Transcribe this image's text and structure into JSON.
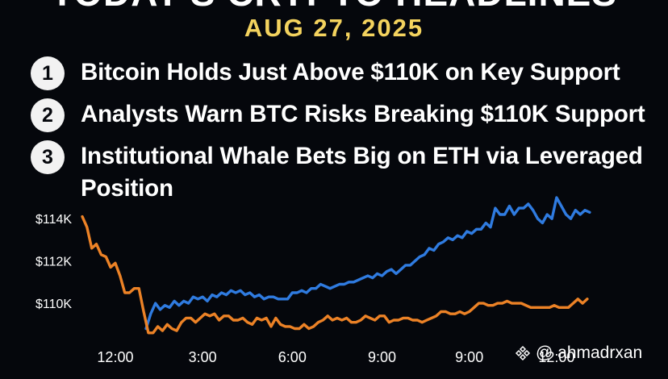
{
  "header": {
    "title": "TODAY'S CRYPTO HEADLINES",
    "date": "AUG 27, 2025"
  },
  "headlines": [
    {
      "number": "1",
      "text": "Bitcoin Holds Just Above $110K on Key Support"
    },
    {
      "number": "2",
      "text": "Analysts Warn BTC Risks Breaking $110K Support"
    },
    {
      "number": "3",
      "text": "Institutional Whale Bets Big on ETH via Leveraged Position"
    }
  ],
  "chart_data": {
    "type": "line",
    "grid": false,
    "legend": "none",
    "ylim": [
      108400,
      115000
    ],
    "y_ticks": [
      {
        "label": "$114K",
        "value": 114000
      },
      {
        "label": "$112K",
        "value": 112000
      },
      {
        "label": "$110K",
        "value": 110000
      }
    ],
    "xlim": [
      0,
      12
    ],
    "x_ticks": [
      {
        "label": "12:00",
        "value": 0.7
      },
      {
        "label": "3:00",
        "value": 2.55
      },
      {
        "label": "6:00",
        "value": 4.45
      },
      {
        "label": "9:00",
        "value": 6.35
      },
      {
        "label": "9:00",
        "value": 8.2
      },
      {
        "label": "12:00",
        "value": 10.05
      }
    ],
    "series": [
      {
        "color": "#2f7be0",
        "x": [
          1.35,
          1.45,
          1.55,
          1.65,
          1.75,
          1.85,
          1.95,
          2.05,
          2.15,
          2.25,
          2.35,
          2.45,
          2.55,
          2.65,
          2.75,
          2.85,
          2.95,
          3.05,
          3.15,
          3.25,
          3.35,
          3.45,
          3.55,
          3.65,
          3.75,
          3.85,
          3.95,
          4.05,
          4.15,
          4.25,
          4.35,
          4.45,
          4.55,
          4.65,
          4.75,
          4.85,
          4.95,
          5.05,
          5.15,
          5.25,
          5.35,
          5.45,
          5.55,
          5.65,
          5.75,
          5.85,
          5.95,
          6.05,
          6.15,
          6.25,
          6.35,
          6.45,
          6.55,
          6.65,
          6.75,
          6.85,
          6.95,
          7.05,
          7.15,
          7.25,
          7.35,
          7.45,
          7.55,
          7.65,
          7.75,
          7.85,
          7.95,
          8.05,
          8.15,
          8.25,
          8.35,
          8.45,
          8.55,
          8.65,
          8.75,
          8.85,
          8.95,
          9.05,
          9.15,
          9.25,
          9.35,
          9.45,
          9.55,
          9.65,
          9.75,
          9.85,
          9.95,
          10.05,
          10.15,
          10.25,
          10.35,
          10.45,
          10.55,
          10.65,
          10.75
        ],
        "values": [
          108800,
          109500,
          110000,
          109700,
          109900,
          109800,
          110100,
          109900,
          110100,
          110000,
          110300,
          110200,
          110300,
          110100,
          110400,
          110300,
          110500,
          110400,
          110600,
          110500,
          110600,
          110400,
          110500,
          110300,
          110400,
          110200,
          110300,
          110300,
          110200,
          110200,
          110200,
          110500,
          110500,
          110600,
          110500,
          110700,
          110700,
          110900,
          110800,
          110700,
          110800,
          110900,
          110900,
          111000,
          111000,
          111100,
          111200,
          111300,
          111200,
          111400,
          111300,
          111500,
          111600,
          111400,
          111600,
          111800,
          111800,
          112000,
          112200,
          112300,
          112600,
          112500,
          112800,
          112900,
          113100,
          113000,
          113200,
          113100,
          113400,
          113300,
          113500,
          113500,
          113800,
          113600,
          114500,
          114200,
          114200,
          114600,
          114200,
          114500,
          114500,
          114700,
          114400,
          114000,
          113800,
          114200,
          114000,
          115000,
          114600,
          114200,
          114000,
          114400,
          114200,
          114400,
          114300
        ]
      },
      {
        "color": "#ec8226",
        "x": [
          0,
          0.1,
          0.2,
          0.3,
          0.4,
          0.5,
          0.6,
          0.7,
          0.8,
          0.9,
          1.0,
          1.1,
          1.2,
          1.3,
          1.4,
          1.5,
          1.6,
          1.7,
          1.8,
          1.9,
          2.0,
          2.1,
          2.2,
          2.3,
          2.4,
          2.5,
          2.6,
          2.7,
          2.8,
          2.9,
          3.0,
          3.1,
          3.2,
          3.3,
          3.4,
          3.5,
          3.6,
          3.7,
          3.8,
          3.9,
          4.0,
          4.1,
          4.2,
          4.3,
          4.4,
          4.5,
          4.6,
          4.7,
          4.8,
          4.9,
          5.0,
          5.1,
          5.2,
          5.3,
          5.4,
          5.5,
          5.6,
          5.7,
          5.8,
          5.9,
          6.0,
          6.1,
          6.2,
          6.3,
          6.4,
          6.5,
          6.6,
          6.7,
          6.8,
          6.9,
          7.0,
          7.1,
          7.2,
          7.3,
          7.4,
          7.5,
          7.6,
          7.7,
          7.8,
          7.9,
          8.0,
          8.1,
          8.2,
          8.3,
          8.4,
          8.5,
          8.6,
          8.7,
          8.8,
          8.9,
          9.0,
          9.1,
          9.2,
          9.3,
          9.4,
          9.5,
          9.6,
          9.7,
          9.8,
          9.9,
          10.0,
          10.1,
          10.2,
          10.3,
          10.4,
          10.5,
          10.6,
          10.7
        ],
        "values": [
          114100,
          113600,
          112600,
          112800,
          112300,
          112200,
          111700,
          111900,
          111300,
          110500,
          110500,
          110700,
          110700,
          109600,
          108600,
          108600,
          108900,
          108700,
          109000,
          108800,
          108700,
          109100,
          109300,
          109300,
          109100,
          109300,
          109500,
          109400,
          109500,
          109200,
          109400,
          109400,
          109200,
          109200,
          109300,
          109100,
          109000,
          109300,
          109200,
          109300,
          108900,
          109300,
          109000,
          108900,
          108900,
          108800,
          108800,
          109000,
          108800,
          108900,
          109100,
          109200,
          109400,
          109200,
          109300,
          109200,
          109300,
          109100,
          109100,
          109200,
          109400,
          109300,
          109200,
          109400,
          109400,
          109100,
          109200,
          109200,
          109300,
          109300,
          109200,
          109200,
          109100,
          109200,
          109300,
          109400,
          109600,
          109600,
          109500,
          109500,
          109600,
          109500,
          109600,
          109800,
          110000,
          110000,
          109900,
          109900,
          110000,
          110000,
          110100,
          110000,
          110000,
          110000,
          109900,
          109800,
          109800,
          109800,
          109800,
          109800,
          109900,
          109800,
          109800,
          109800,
          110000,
          110200,
          110000,
          110200
        ]
      }
    ]
  },
  "watermark": {
    "icon": "binance-icon",
    "handle": "@ ahmadrxan"
  }
}
